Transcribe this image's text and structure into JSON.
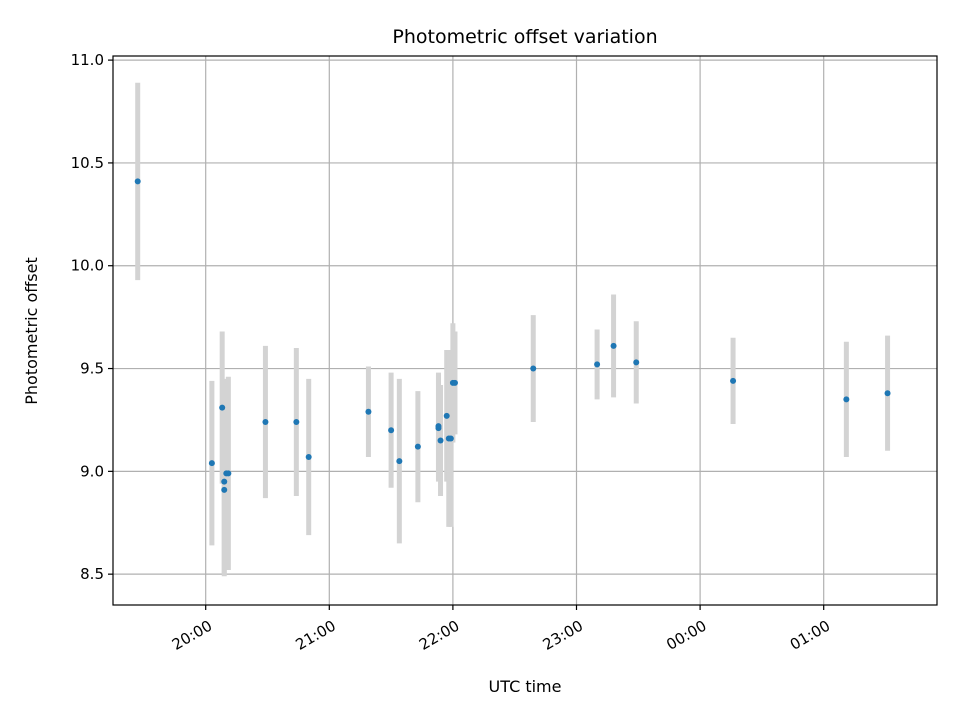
{
  "chart_data": {
    "type": "scatter",
    "title": "Photometric offset variation",
    "xlabel": "UTC time",
    "ylabel": "Photometric offset",
    "x_axis": {
      "kind": "datetime",
      "range": [
        "19:15",
        "01:55"
      ],
      "tick_values": [
        "20:00",
        "21:00",
        "22:00",
        "23:00",
        "00:00",
        "01:00"
      ],
      "tick_labels": [
        "20:00",
        "21:00",
        "22:00",
        "23:00",
        "00:00",
        "01:00"
      ],
      "tick_label_rotation": "rotated 30 degrees"
    },
    "y_axis": {
      "range": [
        8.35,
        11.02
      ],
      "tick_values": [
        8.5,
        9.0,
        9.5,
        10.0,
        10.5,
        11.0
      ],
      "tick_labels": [
        "8.5",
        "9.0",
        "9.5",
        "10.0",
        "10.5",
        "11.0"
      ]
    },
    "grid": true,
    "colors": {
      "points": "#1f77b4",
      "error_bars": "#d3d3d3",
      "grid": "#b0b0b0"
    },
    "series": [
      {
        "points": [
          {
            "x": "19:27",
            "y": 10.41,
            "err": 0.48
          },
          {
            "x": "20:03",
            "y": 9.04,
            "err": 0.4
          },
          {
            "x": "20:08",
            "y": 9.31,
            "err": 0.37
          },
          {
            "x": "20:09",
            "y": 8.95,
            "err": 0.45
          },
          {
            "x": "20:09",
            "y": 8.91,
            "err": 0.42
          },
          {
            "x": "20:10",
            "y": 8.99,
            "err": 0.46
          },
          {
            "x": "20:11",
            "y": 8.99,
            "err": 0.47
          },
          {
            "x": "20:29",
            "y": 9.24,
            "err": 0.37
          },
          {
            "x": "20:44",
            "y": 9.24,
            "err": 0.36
          },
          {
            "x": "20:50",
            "y": 9.07,
            "err": 0.38
          },
          {
            "x": "21:19",
            "y": 9.29,
            "err": 0.22
          },
          {
            "x": "21:30",
            "y": 9.2,
            "err": 0.28
          },
          {
            "x": "21:34",
            "y": 9.05,
            "err": 0.4
          },
          {
            "x": "21:43",
            "y": 9.12,
            "err": 0.27
          },
          {
            "x": "21:53",
            "y": 9.21,
            "err": 0.26
          },
          {
            "x": "21:53",
            "y": 9.22,
            "err": 0.26
          },
          {
            "x": "21:54",
            "y": 9.15,
            "err": 0.27
          },
          {
            "x": "21:57",
            "y": 9.27,
            "err": 0.32
          },
          {
            "x": "21:58",
            "y": 9.16,
            "err": 0.43
          },
          {
            "x": "21:59",
            "y": 9.16,
            "err": 0.43
          },
          {
            "x": "22:00",
            "y": 9.43,
            "err": 0.29
          },
          {
            "x": "22:01",
            "y": 9.43,
            "err": 0.25
          },
          {
            "x": "22:39",
            "y": 9.5,
            "err": 0.26
          },
          {
            "x": "23:10",
            "y": 9.52,
            "err": 0.17
          },
          {
            "x": "23:18",
            "y": 9.61,
            "err": 0.25
          },
          {
            "x": "23:29",
            "y": 9.53,
            "err": 0.2
          },
          {
            "x": "00:16",
            "y": 9.44,
            "err": 0.21
          },
          {
            "x": "01:11",
            "y": 9.35,
            "err": 0.28
          },
          {
            "x": "01:31",
            "y": 9.38,
            "err": 0.28
          }
        ]
      }
    ]
  }
}
